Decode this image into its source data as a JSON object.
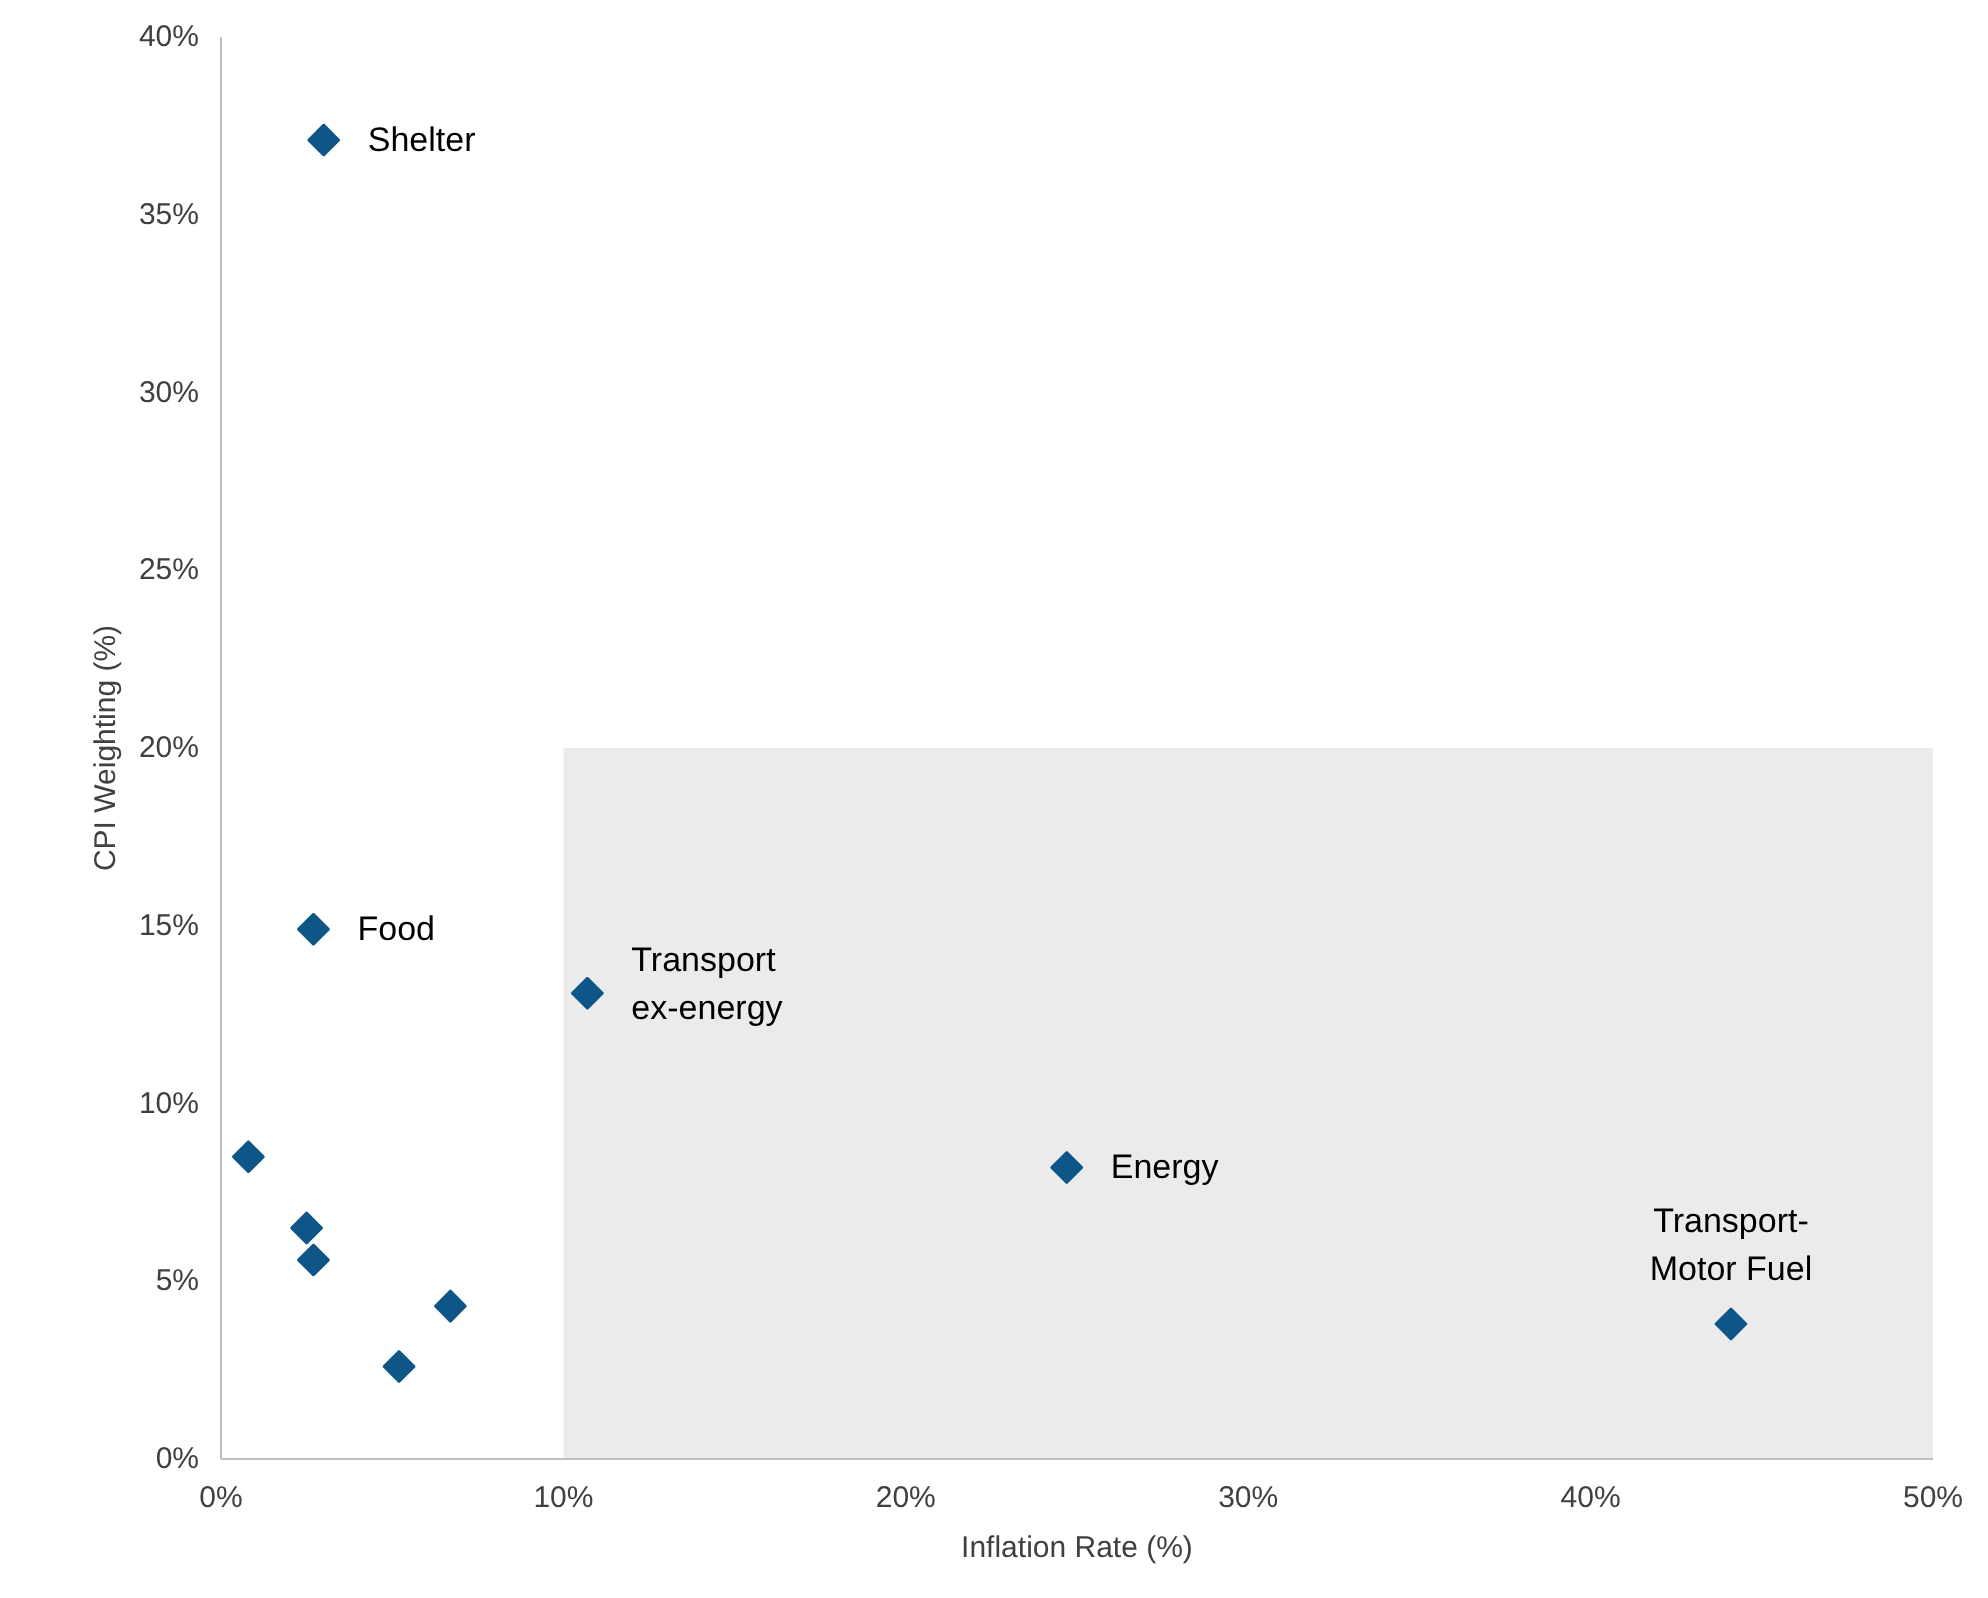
{
  "chart_data": {
    "type": "scatter",
    "xlabel": "Inflation Rate (%)",
    "ylabel": "CPI Weighting (%)",
    "xlim": [
      0,
      50
    ],
    "ylim": [
      0,
      40
    ],
    "xticks": [
      {
        "value": 0,
        "label": "0%"
      },
      {
        "value": 10,
        "label": "10%"
      },
      {
        "value": 20,
        "label": "20%"
      },
      {
        "value": 30,
        "label": "30%"
      },
      {
        "value": 40,
        "label": "40%"
      },
      {
        "value": 50,
        "label": "50%"
      }
    ],
    "yticks": [
      {
        "value": 0,
        "label": "0%"
      },
      {
        "value": 5,
        "label": "5%"
      },
      {
        "value": 10,
        "label": "10%"
      },
      {
        "value": 15,
        "label": "15%"
      },
      {
        "value": 20,
        "label": "20%"
      },
      {
        "value": 25,
        "label": "25%"
      },
      {
        "value": 30,
        "label": "30%"
      },
      {
        "value": 35,
        "label": "35%"
      },
      {
        "value": 40,
        "label": "40%"
      }
    ],
    "grid": false,
    "series": [
      {
        "type": "area",
        "color": "#ebebeb",
        "x": [
          10,
          50
        ],
        "values": [
          20,
          20
        ]
      },
      {
        "marker": "diamond",
        "color": "#0e5687",
        "x": [
          3.0,
          2.7,
          10.7,
          24.7,
          44.1,
          0.8,
          2.5,
          2.7,
          6.7,
          5.2
        ],
        "values": [
          37.1,
          14.9,
          13.1,
          8.2,
          3.8,
          8.5,
          6.5,
          5.6,
          4.3,
          2.6
        ]
      }
    ],
    "annotations": [
      {
        "text": "Shelter",
        "x": 3.0,
        "y": 37.1
      },
      {
        "text": "Food",
        "x": 2.7,
        "y": 14.9
      },
      {
        "text": "Transport\nex-energy",
        "x": 10.7,
        "y": 13.1
      },
      {
        "text": "Energy",
        "x": 24.7,
        "y": 8.2
      },
      {
        "text": "Transport-\nMotor Fuel",
        "x": 44.1,
        "y": 3.8
      }
    ]
  }
}
